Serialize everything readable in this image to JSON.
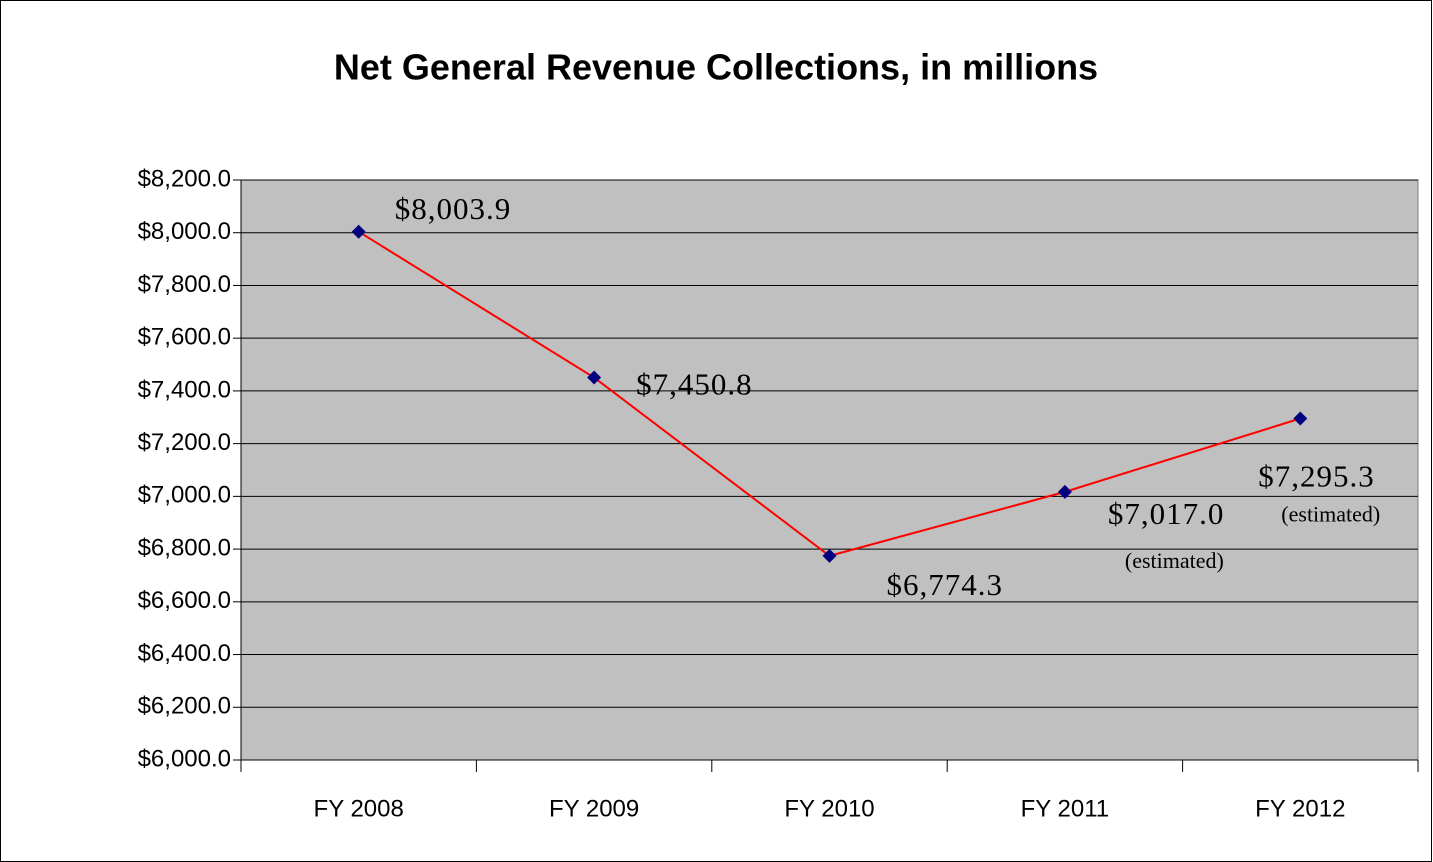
{
  "chart_data": {
    "type": "line",
    "title": "Net General Revenue Collections, in millions",
    "categories": [
      "FY 2008",
      "FY 2009",
      "FY 2010",
      "FY 2011",
      "FY 2012"
    ],
    "series": [
      {
        "name": "Net General Revenue Collections",
        "color": "#ff0000",
        "marker_color": "#000080",
        "values": [
          8003.9,
          7450.8,
          6774.3,
          7017.0,
          7295.3
        ],
        "value_labels": [
          "$8,003.9",
          "$7,450.8",
          "$6,774.3",
          "$7,017.0",
          "$7,295.3"
        ]
      }
    ],
    "annotations": [
      {
        "x": "FY 2011",
        "text": "(estimated)"
      },
      {
        "x": "FY 2012",
        "text": "(estimated)"
      }
    ],
    "ylim": [
      6000,
      8200
    ],
    "yticks": [
      {
        "value": 6000,
        "label": "$6,000.0"
      },
      {
        "value": 6200,
        "label": "$6,200.0"
      },
      {
        "value": 6400,
        "label": "$6,400.0"
      },
      {
        "value": 6600,
        "label": "$6,600.0"
      },
      {
        "value": 6800,
        "label": "$6,800.0"
      },
      {
        "value": 7000,
        "label": "$7,000.0"
      },
      {
        "value": 7200,
        "label": "$7,200.0"
      },
      {
        "value": 7400,
        "label": "$7,400.0"
      },
      {
        "value": 7600,
        "label": "$7,600.0"
      },
      {
        "value": 7800,
        "label": "$7,800.0"
      },
      {
        "value": 8000,
        "label": "$8,000.0"
      },
      {
        "value": 8200,
        "label": "$8,200.0"
      }
    ],
    "grid": true,
    "plot_background": "#c0c0c0"
  }
}
